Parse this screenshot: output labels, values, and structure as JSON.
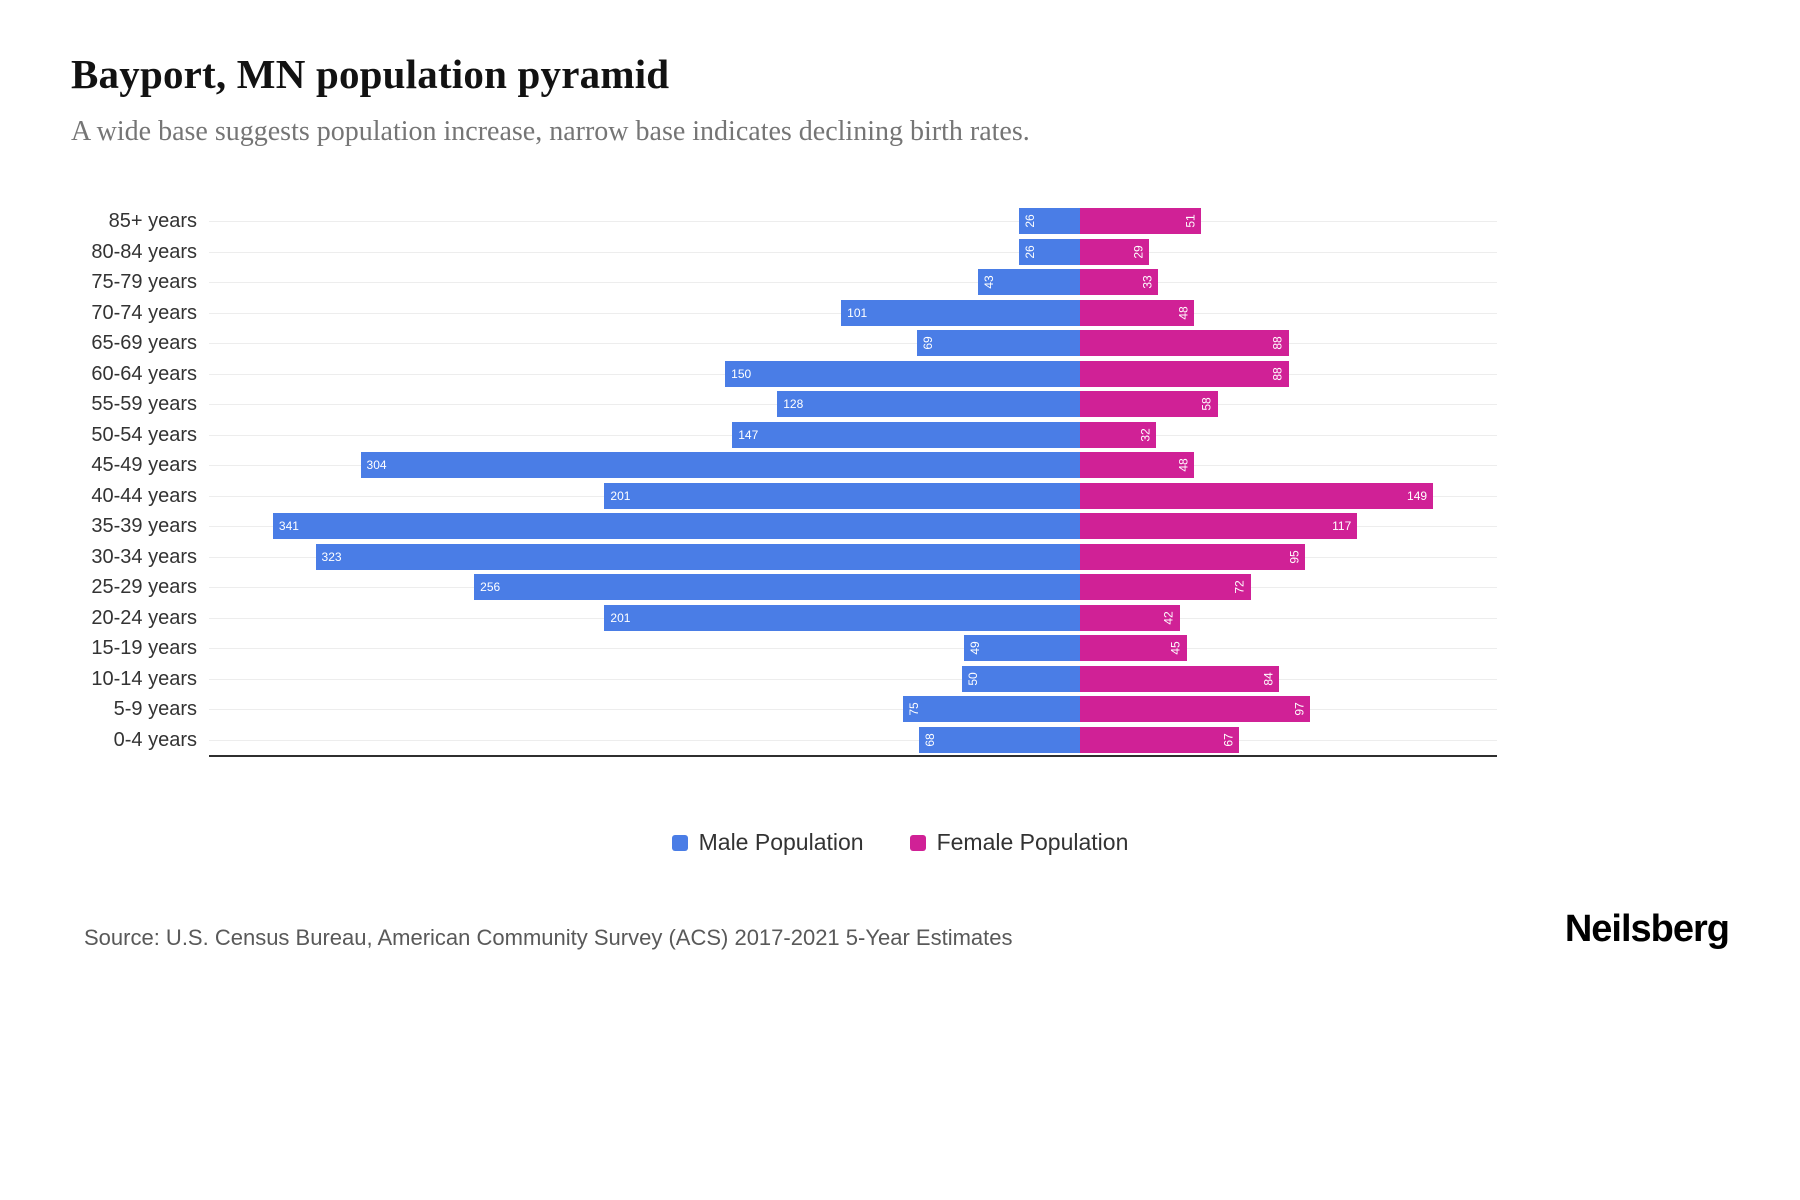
{
  "header": {
    "title": "Bayport, MN population pyramid",
    "subtitle": "A wide base suggests population increase, narrow base indicates declining birth rates."
  },
  "chart_data": {
    "type": "bar",
    "subtype": "population-pyramid",
    "orientation": "horizontal",
    "categories": [
      "85+ years",
      "80-84 years",
      "75-79 years",
      "70-74 years",
      "65-69 years",
      "60-64 years",
      "55-59 years",
      "50-54 years",
      "45-49 years",
      "40-44 years",
      "35-39 years",
      "30-34 years",
      "25-29 years",
      "20-24 years",
      "15-19 years",
      "10-14 years",
      "5-9 years",
      "0-4 years"
    ],
    "series": [
      {
        "name": "Male Population",
        "side": "left",
        "color": "#4a7de6",
        "values": [
          26,
          26,
          43,
          101,
          69,
          150,
          128,
          147,
          304,
          201,
          341,
          323,
          256,
          201,
          49,
          50,
          75,
          68
        ]
      },
      {
        "name": "Female Population",
        "side": "right",
        "color": "#d02196",
        "values": [
          51,
          29,
          33,
          48,
          88,
          88,
          58,
          32,
          48,
          149,
          117,
          95,
          72,
          42,
          45,
          84,
          97,
          67
        ]
      }
    ],
    "axis": {
      "left_extent": 368,
      "right_extent": 176,
      "gridlines": true
    },
    "value_labels": {
      "position": "inside-end",
      "color": "#ffffff",
      "rotate_two_digit_labels": true
    },
    "legend_position": "bottom"
  },
  "legend": {
    "items": [
      {
        "label": "Male Population",
        "color": "#4a7de6"
      },
      {
        "label": "Female Population",
        "color": "#d02196"
      }
    ]
  },
  "footer": {
    "source": "Source: U.S. Census Bureau, American Community Survey (ACS) 2017-2021 5-Year Estimates",
    "brand": "Neilsberg"
  }
}
